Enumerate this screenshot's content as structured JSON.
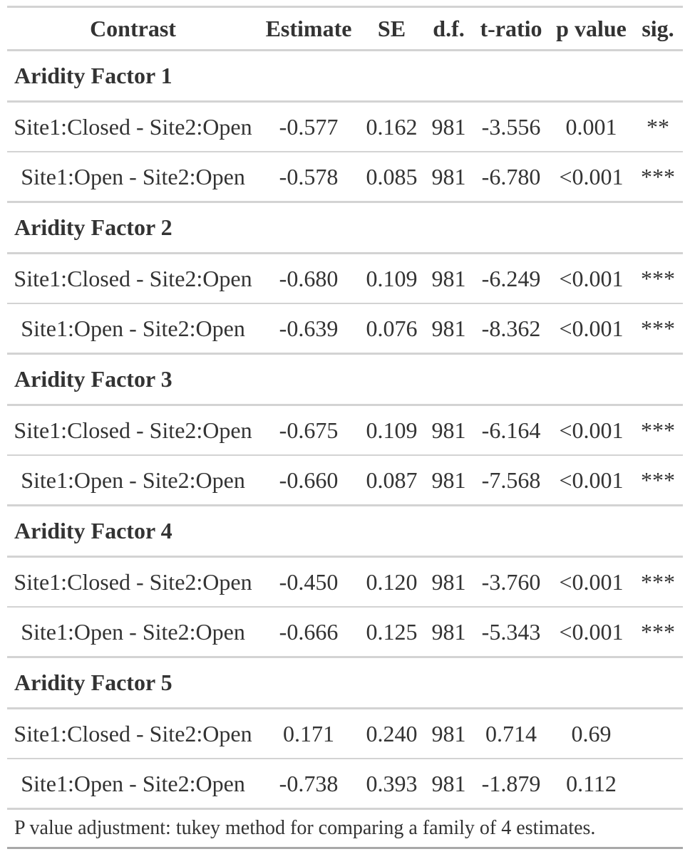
{
  "header": {
    "contrast": "Contrast",
    "estimate": "Estimate",
    "se": "SE",
    "df": "d.f.",
    "t_ratio": "t-ratio",
    "p_value": "p value",
    "sig": "sig."
  },
  "groups": [
    {
      "title": "Aridity Factor 1",
      "rows": [
        {
          "contrast": "Site1:Closed - Site2:Open",
          "estimate": "-0.577",
          "se": "0.162",
          "df": "981",
          "t_ratio": "-3.556",
          "p_value": "0.001",
          "sig": "**"
        },
        {
          "contrast": "Site1:Open - Site2:Open",
          "estimate": "-0.578",
          "se": "0.085",
          "df": "981",
          "t_ratio": "-6.780",
          "p_value": "<0.001",
          "sig": "***"
        }
      ]
    },
    {
      "title": "Aridity Factor 2",
      "rows": [
        {
          "contrast": "Site1:Closed - Site2:Open",
          "estimate": "-0.680",
          "se": "0.109",
          "df": "981",
          "t_ratio": "-6.249",
          "p_value": "<0.001",
          "sig": "***"
        },
        {
          "contrast": "Site1:Open - Site2:Open",
          "estimate": "-0.639",
          "se": "0.076",
          "df": "981",
          "t_ratio": "-8.362",
          "p_value": "<0.001",
          "sig": "***"
        }
      ]
    },
    {
      "title": "Aridity Factor 3",
      "rows": [
        {
          "contrast": "Site1:Closed - Site2:Open",
          "estimate": "-0.675",
          "se": "0.109",
          "df": "981",
          "t_ratio": "-6.164",
          "p_value": "<0.001",
          "sig": "***"
        },
        {
          "contrast": "Site1:Open - Site2:Open",
          "estimate": "-0.660",
          "se": "0.087",
          "df": "981",
          "t_ratio": "-7.568",
          "p_value": "<0.001",
          "sig": "***"
        }
      ]
    },
    {
      "title": "Aridity Factor 4",
      "rows": [
        {
          "contrast": "Site1:Closed - Site2:Open",
          "estimate": "-0.450",
          "se": "0.120",
          "df": "981",
          "t_ratio": "-3.760",
          "p_value": "<0.001",
          "sig": "***"
        },
        {
          "contrast": "Site1:Open - Site2:Open",
          "estimate": "-0.666",
          "se": "0.125",
          "df": "981",
          "t_ratio": "-5.343",
          "p_value": "<0.001",
          "sig": "***"
        }
      ]
    },
    {
      "title": "Aridity Factor 5",
      "rows": [
        {
          "contrast": "Site1:Closed - Site2:Open",
          "estimate": "0.171",
          "se": "0.240",
          "df": "981",
          "t_ratio": "0.714",
          "p_value": "0.69",
          "sig": ""
        },
        {
          "contrast": "Site1:Open - Site2:Open",
          "estimate": "-0.738",
          "se": "0.393",
          "df": "981",
          "t_ratio": "-1.879",
          "p_value": "0.112",
          "sig": ""
        }
      ]
    }
  ],
  "footnote": "P value adjustment: tukey method for comparing a family of 4 estimates.",
  "colors": {
    "text": "#333333",
    "rule": "#d3d3d3",
    "bottom_rule": "#a8a8a8",
    "background": "#ffffff"
  }
}
